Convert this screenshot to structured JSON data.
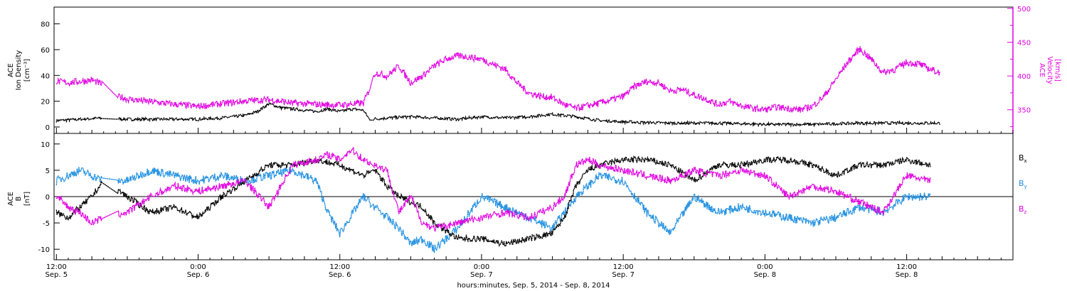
{
  "colors": {
    "black": "#000000",
    "magenta": "#e000e0",
    "blue": "#1f8fe0"
  },
  "chart_data": [
    {
      "type": "scatter",
      "panel": "top",
      "xlabel": "hours:minutes, Sep. 5, 2014 - Sep. 8, 2014",
      "x_unit": "hours since Sep. 5 00:00",
      "xlim": [
        11.8,
        93
      ],
      "x_ticks": [
        {
          "hour": 12,
          "label": "12:00",
          "sublabel": "Sep. 5"
        },
        {
          "hour": 24,
          "label": "0:00",
          "sublabel": "Sep. 6"
        },
        {
          "hour": 36,
          "label": "12:00",
          "sublabel": "Sep. 6"
        },
        {
          "hour": 48,
          "label": "0:00",
          "sublabel": "Sep. 7"
        },
        {
          "hour": 60,
          "label": "12:00",
          "sublabel": "Sep. 7"
        },
        {
          "hour": 72,
          "label": "0:00",
          "sublabel": "Sep. 8"
        },
        {
          "hour": 84,
          "label": "12:00",
          "sublabel": "Sep. 8"
        }
      ],
      "left_axis": {
        "label_lines": [
          "ACE",
          "Ion Density",
          "[cm⁻³]"
        ],
        "ylim": [
          -5,
          93
        ],
        "ticks": [
          0,
          20,
          40,
          60,
          80
        ]
      },
      "right_axis": {
        "label_lines": [
          "ACE",
          "Velocity",
          "[km/s]"
        ],
        "ylim": [
          315,
          502
        ],
        "ticks": [
          350,
          400,
          450,
          500
        ]
      },
      "series": [
        {
          "name": "Ion Density",
          "axis": "left",
          "color": "#000000",
          "x": [
            12,
            14,
            16,
            18,
            20,
            22,
            24,
            26,
            28,
            29,
            30,
            31,
            32,
            33,
            34,
            35,
            36,
            37,
            38,
            38.5,
            40,
            42,
            44,
            46,
            47,
            48,
            50,
            52,
            54,
            56,
            58,
            60,
            64,
            68,
            72,
            76,
            80,
            84,
            86.8
          ],
          "y": [
            5,
            6,
            7,
            6,
            6,
            6,
            6,
            7,
            9,
            12,
            18,
            15,
            14,
            13,
            12,
            14,
            12,
            14,
            13,
            6,
            7,
            8,
            7,
            6,
            7,
            8,
            7,
            8,
            10,
            8,
            5,
            4,
            3,
            3,
            2,
            2,
            3,
            3,
            3
          ]
        },
        {
          "name": "Velocity",
          "axis": "right",
          "color": "#e000e0",
          "x": [
            12,
            13,
            14,
            15,
            15.8,
            17,
            18,
            20,
            22,
            24,
            26,
            28,
            30,
            32,
            34,
            36,
            38,
            38.5,
            39,
            40,
            41,
            42,
            43,
            44,
            45,
            46,
            47,
            48,
            50,
            51,
            52,
            53,
            54,
            55,
            56,
            58,
            60,
            61,
            62,
            63,
            64,
            65,
            66,
            67,
            68,
            69,
            70,
            71,
            72,
            73,
            74,
            75,
            76,
            77,
            78,
            79,
            80,
            81,
            82,
            83,
            84,
            85,
            86,
            86.8
          ],
          "y": [
            392,
            390,
            392,
            394,
            388,
            371,
            366,
            362,
            358,
            355,
            359,
            363,
            365,
            360,
            358,
            357,
            360,
            380,
            405,
            400,
            415,
            390,
            400,
            415,
            425,
            430,
            428,
            425,
            410,
            390,
            375,
            370,
            368,
            358,
            352,
            360,
            370,
            385,
            392,
            390,
            378,
            380,
            372,
            366,
            358,
            362,
            356,
            352,
            350,
            354,
            352,
            350,
            355,
            370,
            395,
            420,
            440,
            425,
            405,
            410,
            420,
            418,
            410,
            405
          ]
        }
      ]
    },
    {
      "type": "scatter",
      "panel": "bottom",
      "xlim": [
        11.8,
        93
      ],
      "y_axis": {
        "label_lines": [
          "ACE",
          "B",
          "[nT]"
        ],
        "ylim": [
          -12,
          12
        ],
        "ticks": [
          -10,
          -5,
          0,
          5,
          10
        ],
        "zero_line": true
      },
      "legend_placement": "right",
      "series": [
        {
          "name": "Bx",
          "label_main": "B",
          "label_sub": "x",
          "color": "#000000",
          "x": [
            12,
            13,
            14,
            15,
            16,
            18,
            20,
            22,
            24,
            26,
            28,
            30,
            32,
            34,
            36,
            38,
            39,
            40,
            41,
            42,
            43,
            44,
            46,
            48,
            50,
            52,
            54,
            55,
            56,
            57,
            58,
            60,
            62,
            64,
            66,
            68,
            70,
            72,
            74,
            76,
            78,
            80,
            82,
            84,
            86
          ],
          "y": [
            -3,
            -4,
            -2,
            0,
            3,
            0,
            -3,
            -2,
            -4,
            0,
            3,
            6,
            6,
            7,
            6,
            4,
            5,
            2,
            0,
            -1,
            -2,
            -5,
            -8,
            -8,
            -9,
            -8,
            -7,
            -4,
            2,
            5,
            6,
            7,
            7,
            6,
            3,
            6,
            6,
            7,
            7,
            6,
            4,
            6,
            6,
            7,
            6
          ]
        },
        {
          "name": "By",
          "label_main": "B",
          "label_sub": "y",
          "color": "#1f8fe0",
          "x": [
            12,
            13,
            14,
            15,
            16,
            18,
            20,
            22,
            24,
            26,
            28,
            30,
            32,
            34,
            35,
            36,
            38,
            39,
            40,
            41,
            42,
            43,
            44,
            46,
            48,
            50,
            52,
            54,
            56,
            58,
            60,
            62,
            64,
            66,
            68,
            70,
            72,
            74,
            76,
            78,
            80,
            82,
            84,
            86
          ],
          "y": [
            3,
            4,
            5,
            4,
            3,
            3,
            5,
            4,
            3,
            4,
            3,
            4,
            5,
            3,
            -3,
            -7,
            0,
            -2,
            -4,
            -6,
            -9,
            -8,
            -10,
            -6,
            0,
            -2,
            -4,
            -6,
            0,
            4,
            3,
            -3,
            -7,
            0,
            -3,
            -2,
            -3,
            -4,
            -5,
            -4,
            -2,
            -3,
            0,
            0
          ]
        },
        {
          "name": "Bz",
          "label_main": "B",
          "label_sub": "z",
          "color": "#e000e0",
          "x": [
            12,
            13,
            14,
            15,
            16,
            18,
            20,
            22,
            24,
            26,
            28,
            30,
            32,
            34,
            35,
            36,
            37,
            38,
            39,
            40,
            41,
            42,
            43,
            44,
            46,
            48,
            50,
            52,
            54,
            55,
            56,
            57,
            58,
            60,
            62,
            64,
            66,
            68,
            70,
            72,
            74,
            76,
            78,
            80,
            82,
            84,
            86
          ],
          "y": [
            0,
            -2,
            -3,
            -5,
            -4,
            -3,
            0,
            2,
            1,
            2,
            3,
            -2,
            6,
            7,
            8,
            7,
            9,
            7,
            6,
            5,
            -3,
            0,
            -5,
            -6,
            -5,
            -4,
            -3,
            -4,
            -2,
            0,
            6,
            7,
            6,
            5,
            4,
            3,
            5,
            4,
            5,
            4,
            0,
            2,
            1,
            -1,
            -3,
            4,
            3
          ]
        }
      ]
    }
  ]
}
